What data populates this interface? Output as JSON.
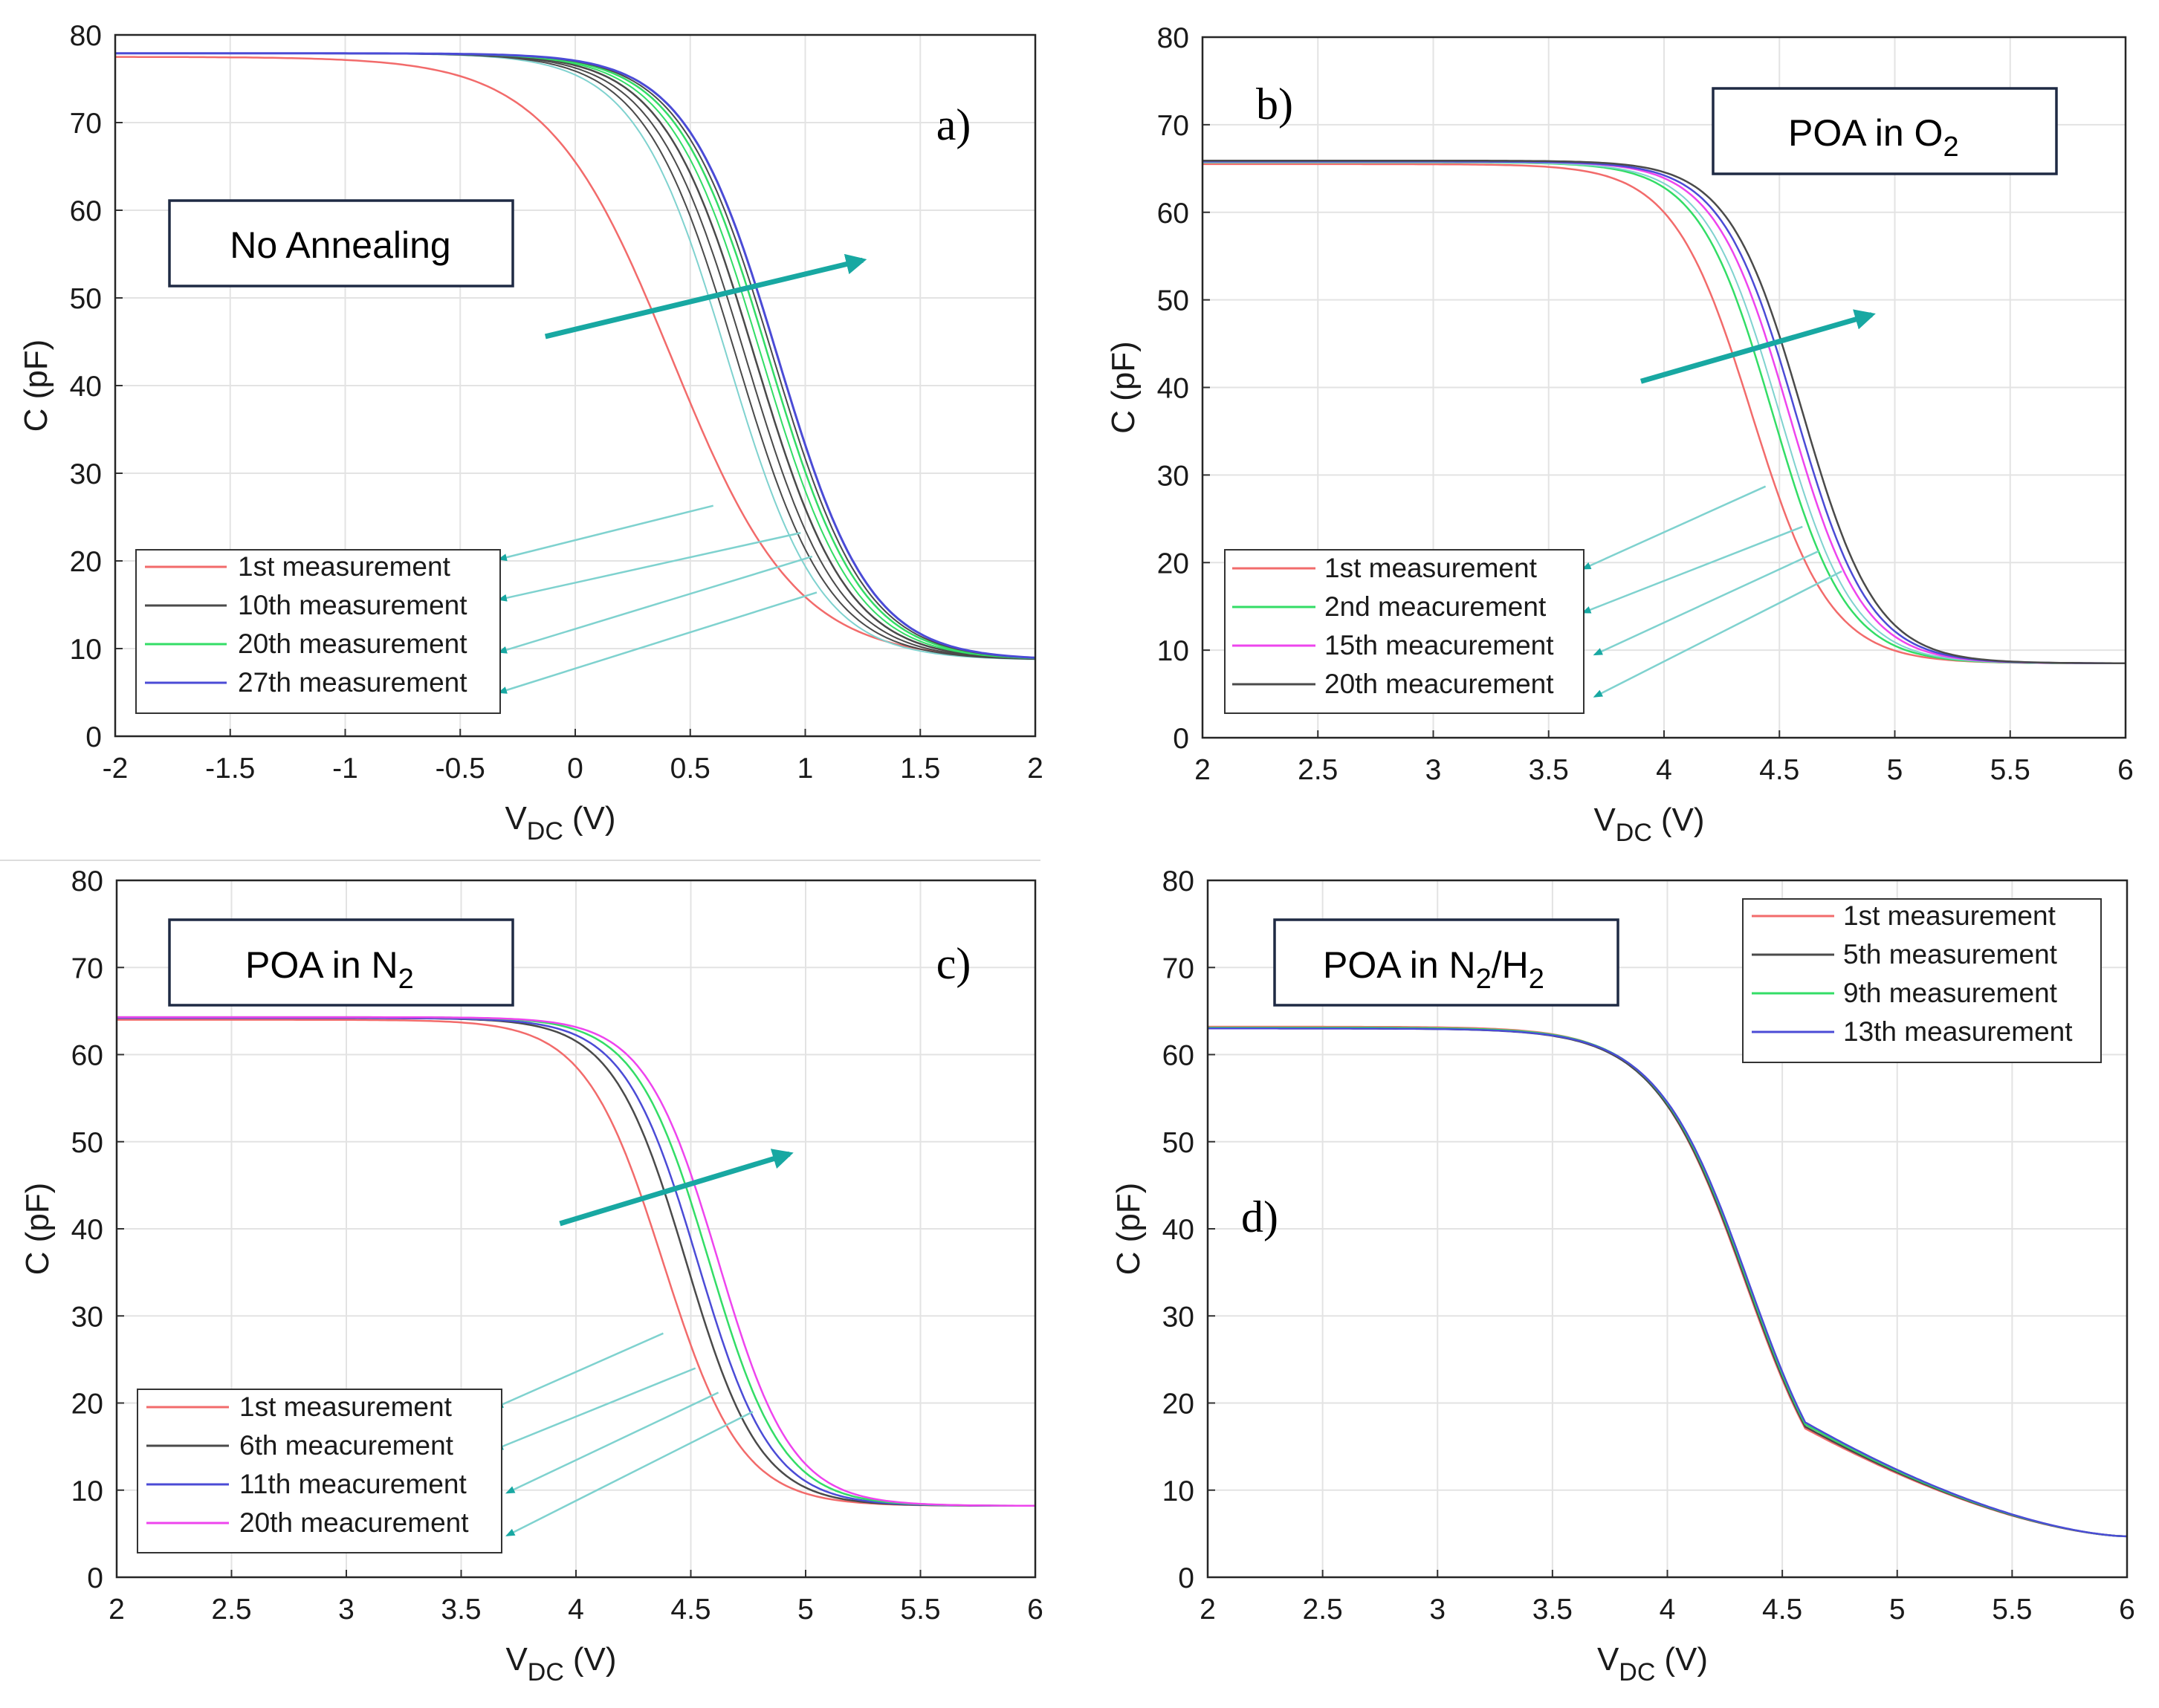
{
  "colors": {
    "red": "#f26b6b",
    "black": "#4a4a4a",
    "green": "#33dd66",
    "blue": "#4b4bd6",
    "magenta": "#ee44ee",
    "teal": "#18a8a2",
    "teal_light": "#7fd2cf"
  },
  "chart_data": [
    {
      "panel": "a)",
      "type": "line",
      "annotation": "No Annealing",
      "xlabel_main": "V",
      "xlabel_sub": "DC",
      "xlabel_unit": "(V)",
      "ylabel": "C (pF)",
      "xlim": [
        -2,
        2
      ],
      "ylim": [
        0,
        80
      ],
      "xticks": [
        -2,
        -1.5,
        -1,
        -0.5,
        0,
        0.5,
        1,
        1.5,
        2
      ],
      "yticks": [
        0,
        10,
        20,
        30,
        40,
        50,
        60,
        70,
        80
      ],
      "grid": true,
      "legend_position": "bottom-left",
      "legend": [
        {
          "label": "1st measurement",
          "color_key": "red"
        },
        {
          "label": "10th measurement",
          "color_key": "black"
        },
        {
          "label": "20th measurement",
          "color_key": "green"
        },
        {
          "label": "27th measurement",
          "color_key": "blue"
        }
      ],
      "series": [
        {
          "name": "1st measurement",
          "color_key": "red",
          "cmax": 77.5,
          "cmin": 8.7,
          "v0": 0.42,
          "w": 0.27,
          "lw": 2.5
        },
        {
          "name": "intermediate",
          "color_key": "teal_light",
          "cmax": 77.9,
          "cmin": 8.7,
          "v0": 0.66,
          "w": 0.2,
          "lw": 2
        },
        {
          "name": "intermediate",
          "color_key": "black",
          "cmax": 77.9,
          "cmin": 8.7,
          "v0": 0.7,
          "w": 0.2,
          "lw": 2
        },
        {
          "name": "intermediate",
          "color_key": "black",
          "cmax": 77.9,
          "cmin": 8.7,
          "v0": 0.74,
          "w": 0.2,
          "lw": 2
        },
        {
          "name": "10th measurement",
          "color_key": "black",
          "cmax": 77.9,
          "cmin": 8.7,
          "v0": 0.78,
          "w": 0.2,
          "lw": 2.5
        },
        {
          "name": "intermediate",
          "color_key": "green",
          "cmax": 77.9,
          "cmin": 8.7,
          "v0": 0.81,
          "w": 0.2,
          "lw": 2
        },
        {
          "name": "20th measurement",
          "color_key": "green",
          "cmax": 77.9,
          "cmin": 8.7,
          "v0": 0.84,
          "w": 0.2,
          "lw": 2.5
        },
        {
          "name": "intermediate",
          "color_key": "black",
          "cmax": 77.9,
          "cmin": 8.7,
          "v0": 0.86,
          "w": 0.2,
          "lw": 2
        },
        {
          "name": "27th measurement",
          "color_key": "blue",
          "cmax": 77.9,
          "cmin": 8.7,
          "v0": 0.88,
          "w": 0.2,
          "lw": 3
        }
      ],
      "trend_arrow": {
        "from": [
          -0.13,
          45.6
        ],
        "to": [
          1.25,
          54.3
        ]
      },
      "leader_lines": [
        {
          "from": [
            0.6,
            26.3
          ],
          "to": [
            -0.33,
            20.2
          ]
        },
        {
          "from": [
            0.98,
            23.2
          ],
          "to": [
            -0.33,
            15.6
          ]
        },
        {
          "from": [
            1.03,
            20.5
          ],
          "to": [
            -0.33,
            9.6
          ]
        },
        {
          "from": [
            1.05,
            16.4
          ],
          "to": [
            -0.33,
            5.0
          ]
        }
      ]
    },
    {
      "panel": "b)",
      "type": "line",
      "annotation_main": "POA in O",
      "annotation_sub": "2",
      "xlabel_main": "V",
      "xlabel_sub": "DC",
      "xlabel_unit": "(V)",
      "ylabel": "C (pF)",
      "xlim": [
        2,
        6
      ],
      "ylim": [
        0,
        80
      ],
      "xticks": [
        2,
        2.5,
        3,
        3.5,
        4,
        4.5,
        5,
        5.5,
        6
      ],
      "yticks": [
        0,
        10,
        20,
        30,
        40,
        50,
        60,
        70,
        80
      ],
      "grid": true,
      "legend_position": "bottom-left",
      "legend": [
        {
          "label": "1st measurement",
          "color_key": "red"
        },
        {
          "label": "2nd meacurement",
          "color_key": "green"
        },
        {
          "label": "15th meacurement",
          "color_key": "magenta"
        },
        {
          "label": "20th meacurement",
          "color_key": "black"
        }
      ],
      "series": [
        {
          "name": "1st measurement",
          "color_key": "red",
          "cmax": 65.5,
          "cmin": 8.5,
          "v0": 4.38,
          "w": 0.17,
          "lw": 2.5
        },
        {
          "name": "2nd meacurement",
          "color_key": "green",
          "cmax": 65.7,
          "cmin": 8.5,
          "v0": 4.47,
          "w": 0.16,
          "lw": 2.5
        },
        {
          "name": "intermediate",
          "color_key": "teal_light",
          "cmax": 65.7,
          "cmin": 8.5,
          "v0": 4.5,
          "w": 0.16,
          "lw": 2
        },
        {
          "name": "15th meacurement",
          "color_key": "magenta",
          "cmax": 65.8,
          "cmin": 8.5,
          "v0": 4.54,
          "w": 0.16,
          "lw": 2.5
        },
        {
          "name": "intermediate",
          "color_key": "blue",
          "cmax": 65.8,
          "cmin": 8.5,
          "v0": 4.57,
          "w": 0.16,
          "lw": 2.5
        },
        {
          "name": "20th meacurement",
          "color_key": "black",
          "cmax": 65.9,
          "cmin": 8.5,
          "v0": 4.6,
          "w": 0.16,
          "lw": 2.5
        }
      ],
      "trend_arrow": {
        "from": [
          3.9,
          40.7
        ],
        "to": [
          4.9,
          48.3
        ]
      },
      "leader_lines": [
        {
          "from": [
            4.44,
            28.7
          ],
          "to": [
            3.65,
            19.3
          ]
        },
        {
          "from": [
            4.6,
            24.1
          ],
          "to": [
            3.65,
            14.3
          ]
        },
        {
          "from": [
            4.67,
            21.3
          ],
          "to": [
            3.7,
            9.5
          ]
        },
        {
          "from": [
            4.77,
            19.0
          ],
          "to": [
            3.7,
            4.7
          ]
        }
      ]
    },
    {
      "panel": "c)",
      "type": "line",
      "annotation_main": "POA in N",
      "annotation_sub": "2",
      "xlabel_main": "V",
      "xlabel_sub": "DC",
      "xlabel_unit": "(V)",
      "ylabel": "C (pF)",
      "xlim": [
        2,
        6
      ],
      "ylim": [
        0,
        80
      ],
      "xticks": [
        2,
        2.5,
        3,
        3.5,
        4,
        4.5,
        5,
        5.5,
        6
      ],
      "yticks": [
        0,
        10,
        20,
        30,
        40,
        50,
        60,
        70,
        80
      ],
      "grid": true,
      "legend_position": "bottom-left",
      "legend": [
        {
          "label": "1st measurement",
          "color_key": "red"
        },
        {
          "label": "6th meacurement",
          "color_key": "black"
        },
        {
          "label": "11th meacurement",
          "color_key": "blue"
        },
        {
          "label": "20th meacurement",
          "color_key": "magenta"
        }
      ],
      "series": [
        {
          "name": "1st measurement",
          "color_key": "red",
          "cmax": 64,
          "cmin": 8.2,
          "v0": 4.38,
          "w": 0.17,
          "lw": 2.5
        },
        {
          "name": "6th meacurement",
          "color_key": "black",
          "cmax": 64.2,
          "cmin": 8.2,
          "v0": 4.48,
          "w": 0.16,
          "lw": 2.5
        },
        {
          "name": "11th meacurement",
          "color_key": "blue",
          "cmax": 64.2,
          "cmin": 8.2,
          "v0": 4.53,
          "w": 0.16,
          "lw": 2.5
        },
        {
          "name": "intermediate",
          "color_key": "green",
          "cmax": 64.3,
          "cmin": 8.2,
          "v0": 4.58,
          "w": 0.16,
          "lw": 2.5
        },
        {
          "name": "20th meacurement",
          "color_key": "magenta",
          "cmax": 64.3,
          "cmin": 8.2,
          "v0": 4.62,
          "w": 0.16,
          "lw": 2.5
        }
      ],
      "trend_arrow": {
        "from": [
          3.93,
          40.6
        ],
        "to": [
          4.93,
          48.6
        ]
      },
      "leader_lines": [
        {
          "from": [
            4.38,
            28.0
          ],
          "to": [
            3.65,
            19.5
          ]
        },
        {
          "from": [
            4.52,
            24.0
          ],
          "to": [
            3.65,
            14.7
          ]
        },
        {
          "from": [
            4.62,
            21.2
          ],
          "to": [
            3.7,
            9.7
          ]
        },
        {
          "from": [
            4.77,
            19.0
          ],
          "to": [
            3.7,
            4.8
          ]
        }
      ]
    },
    {
      "panel": "d)",
      "type": "line",
      "annotation_main": "POA in N",
      "annotation_sub": "2",
      "annotation_mid": "/H",
      "annotation_sub2": "2",
      "xlabel_main": "V",
      "xlabel_sub": "DC",
      "xlabel_unit": "(V)",
      "ylabel": "C (pF)",
      "xlim": [
        2,
        6
      ],
      "ylim": [
        0,
        80
      ],
      "xticks": [
        2,
        2.5,
        3,
        3.5,
        4,
        4.5,
        5,
        5.5,
        6
      ],
      "yticks": [
        0,
        10,
        20,
        30,
        40,
        50,
        60,
        70,
        80
      ],
      "grid": true,
      "legend_position": "top-right",
      "legend": [
        {
          "label": "1st measurement",
          "color_key": "red"
        },
        {
          "label": "5th measurement",
          "color_key": "black"
        },
        {
          "label": "9th measurement",
          "color_key": "green"
        },
        {
          "label": "13th measurement",
          "color_key": "blue"
        }
      ],
      "series": [
        {
          "name": "1st measurement",
          "color_key": "red",
          "cmax": 63.2,
          "cmin": 4.5,
          "v0": 4.34,
          "w": 0.2,
          "lw": 2.5
        },
        {
          "name": "5th measurement",
          "color_key": "black",
          "cmax": 63.0,
          "cmin": 4.5,
          "v0": 4.345,
          "w": 0.2,
          "lw": 2.5
        },
        {
          "name": "9th measurement",
          "color_key": "green",
          "cmax": 63.1,
          "cmin": 4.5,
          "v0": 4.35,
          "w": 0.2,
          "lw": 2.5
        },
        {
          "name": "13th measurement",
          "color_key": "blue",
          "cmax": 63.0,
          "cmin": 4.5,
          "v0": 4.355,
          "w": 0.2,
          "lw": 2.5
        }
      ],
      "tail": {
        "start_x": 4.6,
        "end_x": 6,
        "end_c": 4.7
      },
      "trend_arrow": null,
      "leader_lines": []
    }
  ]
}
